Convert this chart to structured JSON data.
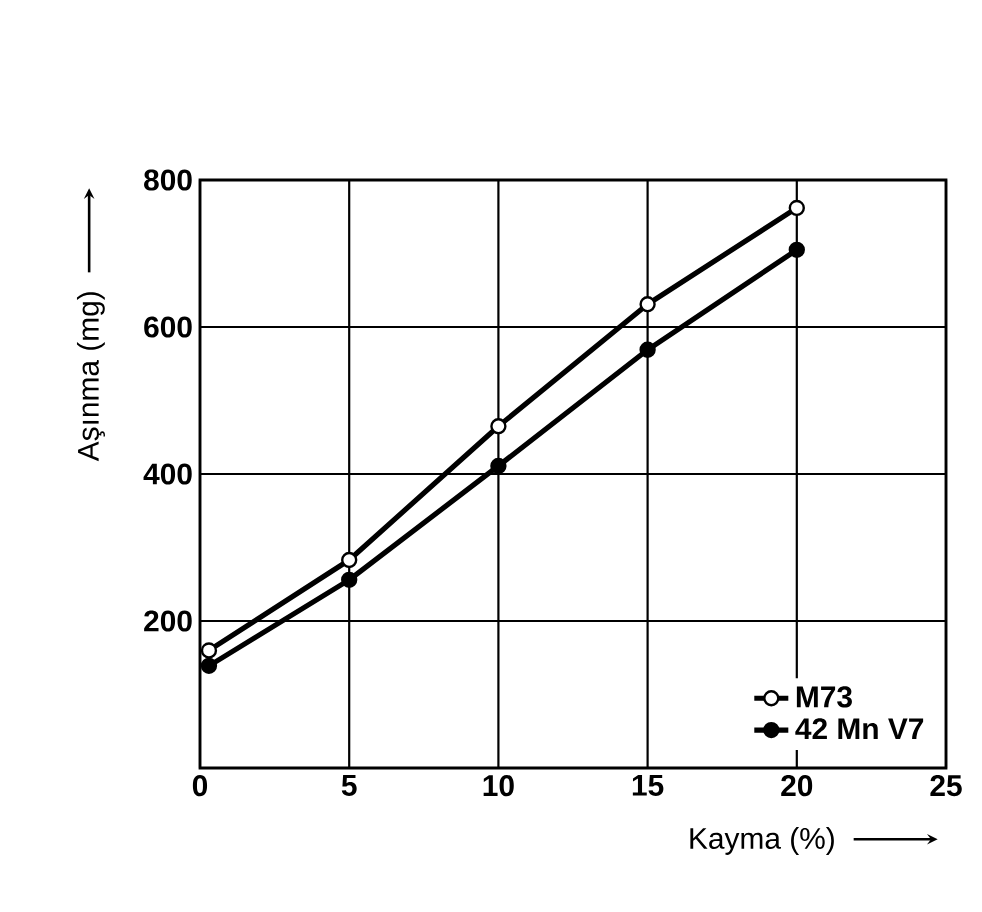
{
  "chart_data": {
    "type": "line",
    "xlabel": "Kayma (%)",
    "ylabel": "Aşınma (mg)",
    "xlim": [
      0,
      25
    ],
    "ylim": [
      0,
      800
    ],
    "xticks": [
      0,
      5,
      10,
      15,
      20,
      25
    ],
    "yticks": [
      200,
      400,
      600,
      800
    ],
    "grid": true,
    "legend": "bottom right",
    "marker": "circle",
    "line_style": "solid",
    "series": [
      {
        "name": "M73",
        "color": "#000000",
        "x": [
          0.3,
          5,
          10,
          15,
          20
        ],
        "values": [
          160,
          283,
          465,
          631,
          762
        ]
      },
      {
        "name": "42 Mn V7",
        "color": "#000000",
        "x": [
          0.3,
          5,
          10,
          15,
          20
        ],
        "values": [
          139,
          256,
          411,
          569,
          705
        ]
      }
    ]
  }
}
